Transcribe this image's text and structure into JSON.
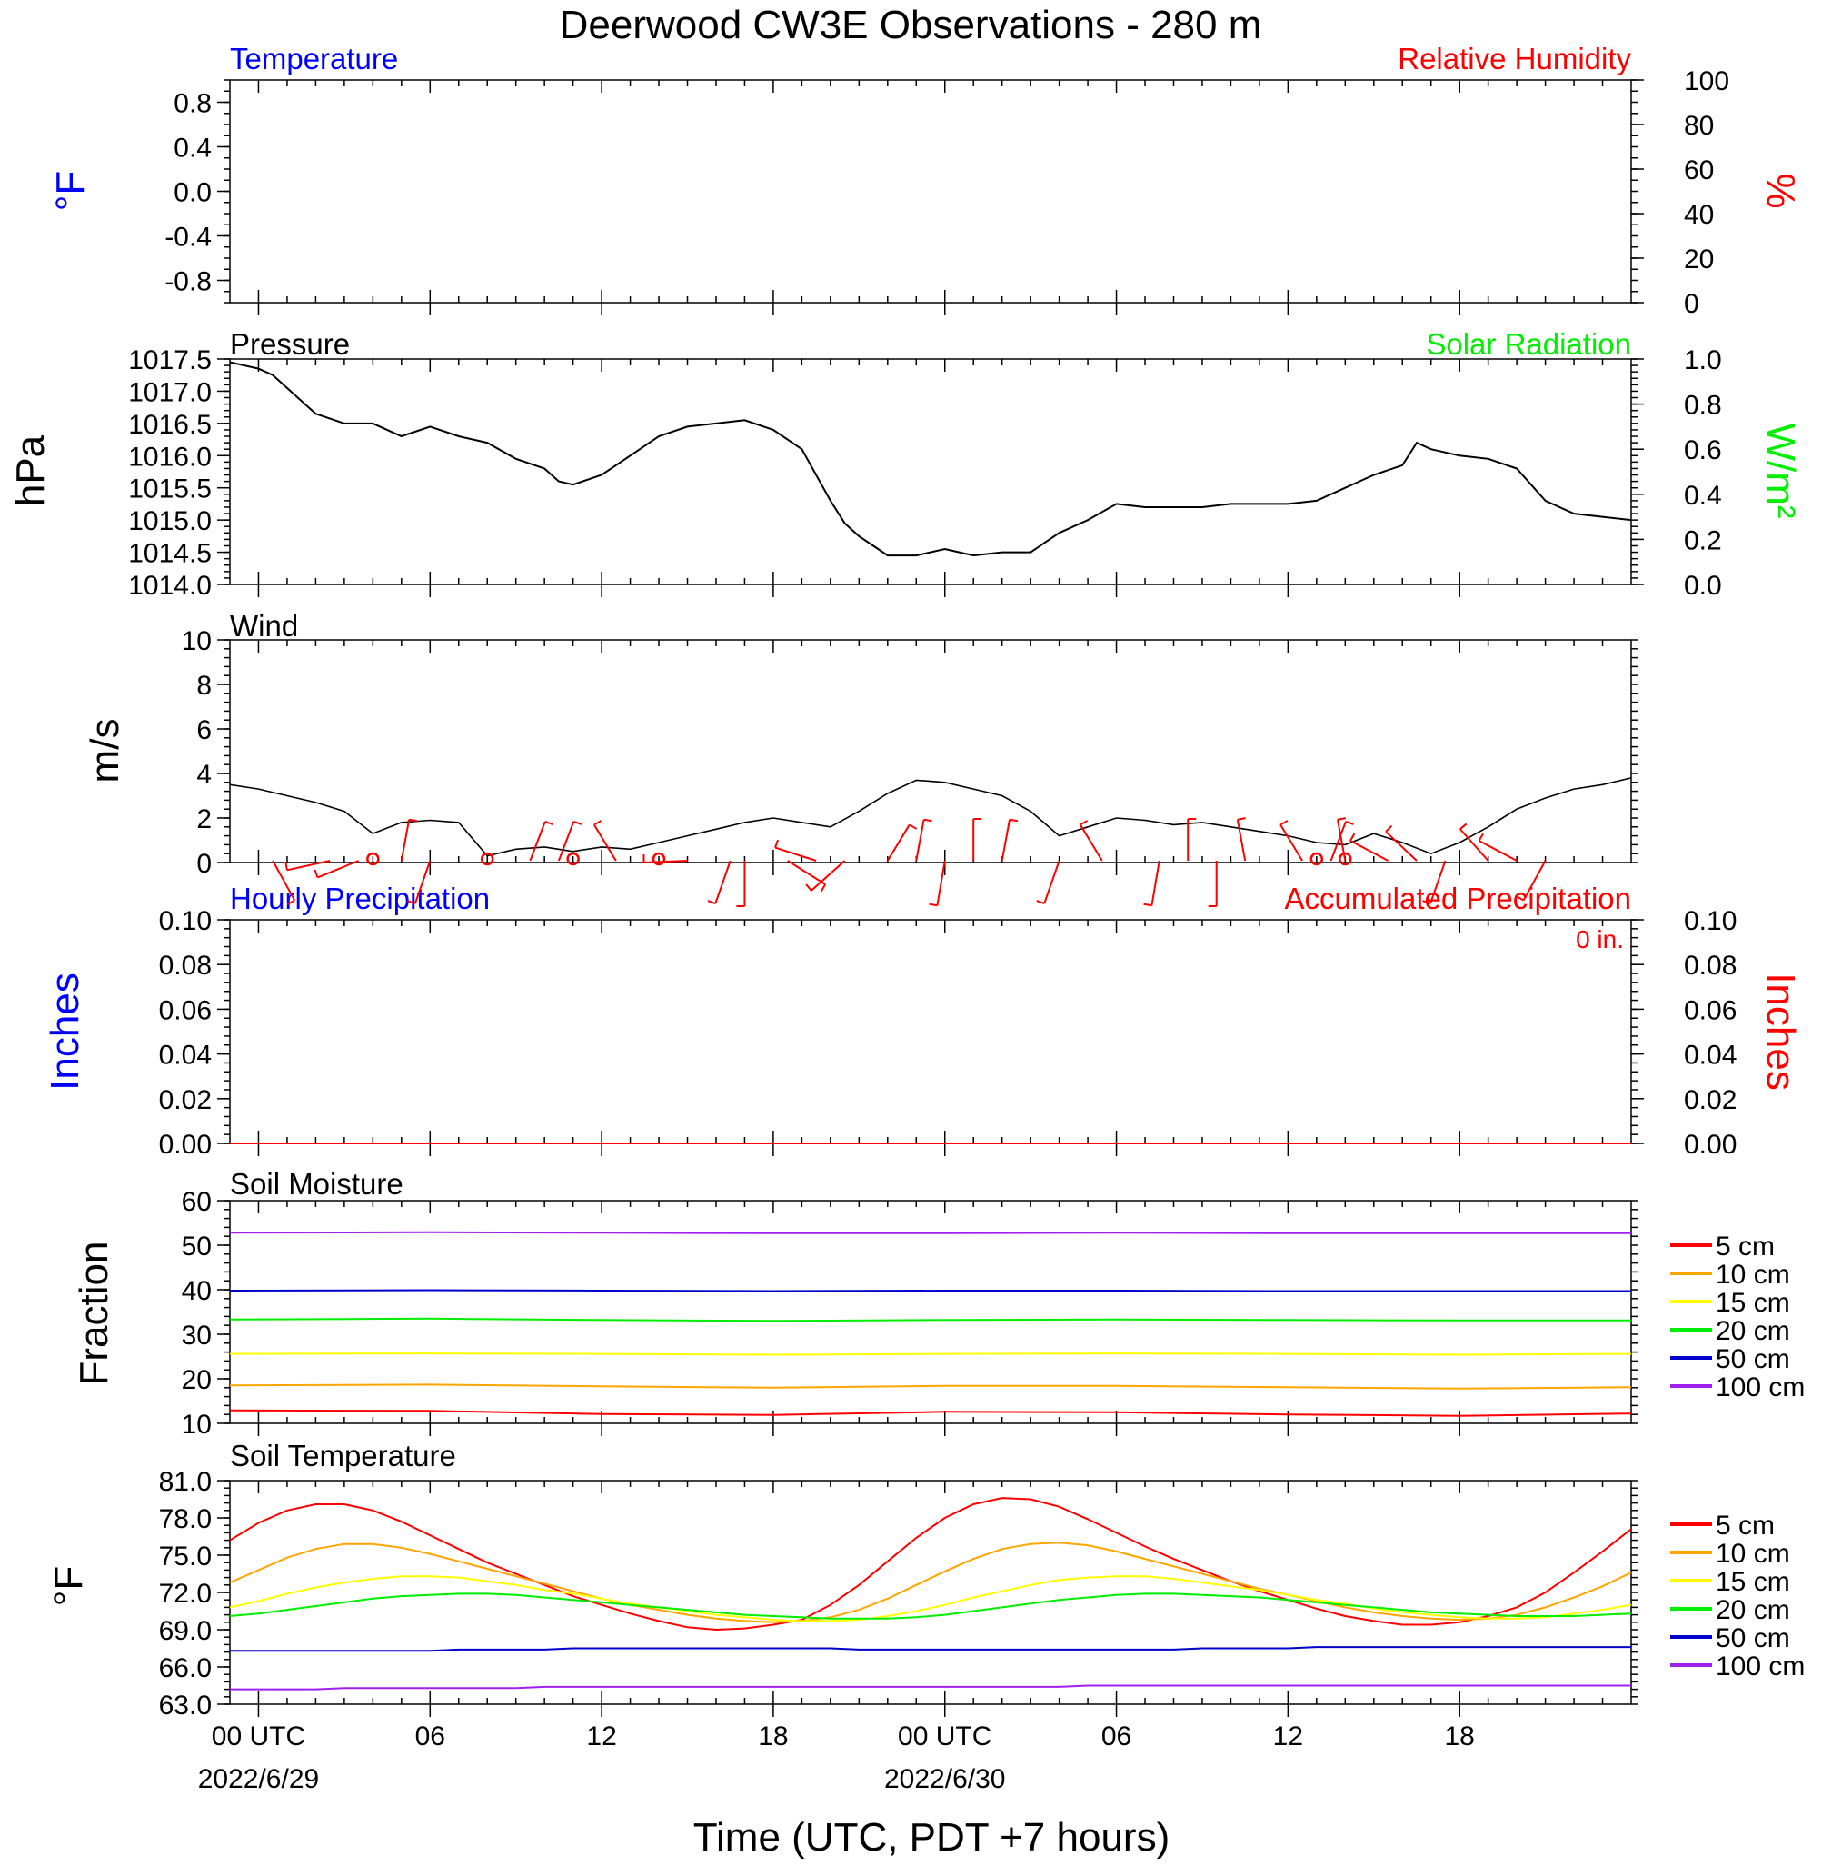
{
  "title": "Deerwood CW3E Observations - 280 m",
  "xlabel": "Time (UTC, PDT +7 hours)",
  "x_ticks": [
    {
      "hour": 0,
      "label": "00 UTC",
      "date": "2022/6/29"
    },
    {
      "hour": 6,
      "label": "06",
      "date": ""
    },
    {
      "hour": 12,
      "label": "12",
      "date": ""
    },
    {
      "hour": 18,
      "label": "18",
      "date": ""
    },
    {
      "hour": 24,
      "label": "00 UTC",
      "date": "2022/6/30"
    },
    {
      "hour": 30,
      "label": "06",
      "date": ""
    },
    {
      "hour": 36,
      "label": "12",
      "date": ""
    },
    {
      "hour": 42,
      "label": "18",
      "date": ""
    }
  ],
  "colors": {
    "blue": "#0000ff",
    "red": "#ff0000",
    "green": "#00ee00",
    "black": "#000000",
    "soil": [
      "#ff0000",
      "#ffa500",
      "#ffff00",
      "#00ee00",
      "#0000cd",
      "#a020f0"
    ]
  },
  "panels": {
    "temperature": {
      "title_left": "Temperature",
      "title_right": "Relative Humidity",
      "ylabel_left": "°F",
      "ylabel_right": "%",
      "yticks_left": [
        "0.8",
        "0.4",
        "0.0",
        "-0.4",
        "-0.8"
      ],
      "yticks_right": [
        "100",
        "80",
        "60",
        "40",
        "20",
        "0"
      ]
    },
    "pressure": {
      "title_left": "Pressure",
      "title_right": "Solar Radiation",
      "ylabel_left": "hPa",
      "ylabel_right": "W/m²",
      "yticks_left": [
        "1017.5",
        "1017.0",
        "1016.5",
        "1016.0",
        "1015.5",
        "1015.0",
        "1014.5",
        "1014.0"
      ],
      "yticks_right": [
        "1.0",
        "0.8",
        "0.6",
        "0.4",
        "0.2",
        "0.0"
      ]
    },
    "wind": {
      "title_left": "Wind",
      "ylabel_left": "m/s",
      "yticks_left": [
        "10",
        "8",
        "6",
        "4",
        "2",
        "0"
      ]
    },
    "precip": {
      "title_left": "Hourly Precipitation",
      "title_right": "Accumulated Precipitation",
      "total": "0 in.",
      "ylabel_left": "Inches",
      "ylabel_right": "Inches",
      "yticks_left": [
        "0.10",
        "0.08",
        "0.06",
        "0.04",
        "0.02",
        "0.00"
      ],
      "yticks_right": [
        "0.10",
        "0.08",
        "0.06",
        "0.04",
        "0.02",
        "0.00"
      ]
    },
    "soil_moisture": {
      "title_left": "Soil Moisture",
      "ylabel_left": "Fraction",
      "yticks_left": [
        "60",
        "50",
        "40",
        "30",
        "20",
        "10"
      ],
      "legend": [
        "5 cm",
        "10 cm",
        "15 cm",
        "20 cm",
        "50 cm",
        "100 cm"
      ]
    },
    "soil_temperature": {
      "title_left": "Soil Temperature",
      "ylabel_left": "°F",
      "yticks_left": [
        "81.0",
        "78.0",
        "75.0",
        "72.0",
        "69.0",
        "66.0",
        "63.0"
      ],
      "legend": [
        "5 cm",
        "10 cm",
        "15 cm",
        "20 cm",
        "50 cm",
        "100 cm"
      ]
    }
  },
  "chart_data": [
    {
      "type": "line",
      "name": "temperature-rh",
      "xlim": [
        -1,
        48
      ],
      "ylim": [
        -1,
        1
      ],
      "ylim_right": [
        0,
        100
      ],
      "series": []
    },
    {
      "type": "line",
      "name": "pressure",
      "xlim": [
        -1,
        48
      ],
      "ylim": [
        1014.0,
        1017.5
      ],
      "ylim_right": [
        0.0,
        1.0
      ],
      "series": [
        {
          "x": [
            -1,
            0,
            0.5,
            1,
            1.5,
            2,
            3,
            4,
            5,
            6,
            7,
            8,
            9,
            10,
            10.5,
            11,
            12,
            13,
            14,
            15,
            16,
            17,
            18,
            19,
            19.5,
            20,
            20.5,
            21,
            21.5,
            22,
            23,
            24,
            25,
            26,
            27,
            28,
            29,
            30,
            31,
            32,
            33,
            34,
            35,
            36,
            37,
            38,
            39,
            40,
            40.5,
            41,
            42,
            43,
            44,
            45,
            46,
            47,
            48
          ],
          "y": [
            1017.45,
            1017.35,
            1017.25,
            1017.05,
            1016.85,
            1016.65,
            1016.5,
            1016.5,
            1016.3,
            1016.45,
            1016.3,
            1016.2,
            1015.95,
            1015.8,
            1015.6,
            1015.55,
            1015.7,
            1016.0,
            1016.3,
            1016.45,
            1016.5,
            1016.55,
            1016.4,
            1016.1,
            1015.7,
            1015.3,
            1014.95,
            1014.75,
            1014.6,
            1014.45,
            1014.45,
            1014.55,
            1014.45,
            1014.5,
            1014.5,
            1014.8,
            1015.0,
            1015.25,
            1015.2,
            1015.2,
            1015.2,
            1015.25,
            1015.25,
            1015.25,
            1015.3,
            1015.5,
            1015.7,
            1015.85,
            1016.2,
            1016.1,
            1016.0,
            1015.95,
            1015.8,
            1015.3,
            1015.1,
            1015.05,
            1015.0
          ]
        }
      ]
    },
    {
      "type": "line",
      "name": "wind",
      "xlim": [
        -1,
        48
      ],
      "ylim": [
        0,
        10
      ],
      "series": [
        {
          "x": [
            -1,
            0,
            1,
            2,
            3,
            4,
            5,
            6,
            7,
            8,
            9,
            10,
            11,
            12,
            13,
            14,
            15,
            16,
            17,
            18,
            19,
            20,
            21,
            22,
            23,
            24,
            25,
            26,
            27,
            28,
            29,
            30,
            31,
            32,
            33,
            34,
            35,
            36,
            37,
            38,
            39,
            40,
            41,
            42,
            43,
            44,
            45,
            46,
            47,
            48
          ],
          "y": [
            3.5,
            3.3,
            3.0,
            2.7,
            2.3,
            1.3,
            1.8,
            1.9,
            1.8,
            0.3,
            0.6,
            0.7,
            0.5,
            0.7,
            0.6,
            0.9,
            1.2,
            1.5,
            1.8,
            2.0,
            1.8,
            1.6,
            2.3,
            3.1,
            3.7,
            3.6,
            3.3,
            3.0,
            2.3,
            1.2,
            1.6,
            2.0,
            1.9,
            1.7,
            1.8,
            1.6,
            1.4,
            1.2,
            0.9,
            0.8,
            1.3,
            0.9,
            0.4,
            0.9,
            1.6,
            2.4,
            2.9,
            3.3,
            3.5,
            3.8
          ]
        }
      ],
      "barbs": {
        "x": [
          0.5,
          2.5,
          3.5,
          5.0,
          6.0,
          9.5,
          10.5,
          12.5,
          15.0,
          16.5,
          17.0,
          18.5,
          19.5,
          20.5,
          22.0,
          23.0,
          24.0,
          25.0,
          26.0,
          28.0,
          29.5,
          31.5,
          32.5,
          33.5,
          34.5,
          36.5,
          37.5,
          38.0,
          39.5,
          40.5,
          41.5,
          43.0,
          44.0,
          45.0
        ],
        "dir": [
          150,
          260,
          250,
          10,
          200,
          20,
          20,
          330,
          270,
          200,
          180,
          120,
          290,
          230,
          30,
          10,
          190,
          0,
          10,
          200,
          330,
          190,
          0,
          180,
          350,
          330,
          20,
          350,
          300,
          315,
          200,
          320,
          300,
          210
        ]
      },
      "calm": {
        "x": [
          4,
          8,
          11,
          14,
          37,
          38
        ]
      }
    },
    {
      "type": "line",
      "name": "precipitation",
      "xlim": [
        -1,
        48
      ],
      "ylim": [
        0,
        0.1
      ],
      "series": [
        {
          "name": "Hourly Precipitation",
          "x": [
            -1,
            48
          ],
          "y": [
            0,
            0
          ]
        },
        {
          "name": "Accumulated Precipitation",
          "x": [
            -1,
            48
          ],
          "y": [
            0,
            0
          ]
        }
      ]
    },
    {
      "type": "line",
      "name": "soil_moisture",
      "xlim": [
        -1,
        48
      ],
      "ylim": [
        10,
        60
      ],
      "x": [
        -1,
        6,
        12,
        18,
        24,
        30,
        36,
        42,
        48
      ],
      "series": [
        {
          "name": "5 cm",
          "values": [
            12.9,
            12.8,
            12.1,
            11.9,
            12.6,
            12.5,
            12.0,
            11.7,
            12.2
          ]
        },
        {
          "name": "10 cm",
          "values": [
            18.5,
            18.7,
            18.3,
            18.0,
            18.4,
            18.4,
            18.1,
            17.8,
            18.1
          ]
        },
        {
          "name": "15 cm",
          "values": [
            25.6,
            25.7,
            25.6,
            25.4,
            25.6,
            25.7,
            25.6,
            25.4,
            25.6
          ]
        },
        {
          "name": "20 cm",
          "values": [
            33.3,
            33.5,
            33.2,
            33.0,
            33.2,
            33.3,
            33.2,
            33.1,
            33.1
          ]
        },
        {
          "name": "50 cm",
          "values": [
            39.8,
            39.9,
            39.8,
            39.7,
            39.8,
            39.8,
            39.7,
            39.7,
            39.7
          ]
        },
        {
          "name": "100 cm",
          "values": [
            52.8,
            52.9,
            52.8,
            52.7,
            52.7,
            52.8,
            52.7,
            52.7,
            52.7
          ]
        }
      ]
    },
    {
      "type": "line",
      "name": "soil_temperature",
      "xlim": [
        -1,
        48
      ],
      "ylim": [
        63,
        81
      ],
      "x": [
        -1,
        0,
        1,
        2,
        3,
        4,
        5,
        6,
        7,
        8,
        9,
        10,
        11,
        12,
        13,
        14,
        15,
        16,
        17,
        18,
        19,
        20,
        21,
        22,
        23,
        24,
        25,
        26,
        27,
        28,
        29,
        30,
        31,
        32,
        33,
        34,
        35,
        36,
        37,
        38,
        39,
        40,
        41,
        42,
        43,
        44,
        45,
        46,
        47,
        48
      ],
      "series": [
        {
          "name": "5 cm",
          "values": [
            76.2,
            77.6,
            78.6,
            79.1,
            79.1,
            78.6,
            77.7,
            76.6,
            75.5,
            74.4,
            73.5,
            72.6,
            71.7,
            71.0,
            70.3,
            69.7,
            69.2,
            69.0,
            69.1,
            69.4,
            69.8,
            71.0,
            72.6,
            74.5,
            76.4,
            78.0,
            79.1,
            79.6,
            79.5,
            78.9,
            77.9,
            76.8,
            75.7,
            74.7,
            73.8,
            72.9,
            72.1,
            71.4,
            70.7,
            70.1,
            69.7,
            69.4,
            69.4,
            69.6,
            70.1,
            70.8,
            72.0,
            73.6,
            75.3,
            77.1
          ]
        },
        {
          "name": "10 cm",
          "values": [
            72.8,
            73.8,
            74.8,
            75.5,
            75.9,
            75.9,
            75.6,
            75.1,
            74.5,
            73.9,
            73.3,
            72.7,
            72.1,
            71.5,
            71.0,
            70.6,
            70.2,
            69.9,
            69.7,
            69.6,
            69.7,
            70.0,
            70.6,
            71.5,
            72.6,
            73.7,
            74.7,
            75.5,
            75.9,
            76.0,
            75.8,
            75.3,
            74.7,
            74.1,
            73.5,
            72.9,
            72.3,
            71.8,
            71.3,
            70.8,
            70.4,
            70.1,
            69.9,
            69.8,
            69.9,
            70.2,
            70.8,
            71.6,
            72.5,
            73.6
          ]
        },
        {
          "name": "15 cm",
          "values": [
            70.8,
            71.3,
            71.9,
            72.4,
            72.8,
            73.1,
            73.3,
            73.3,
            73.2,
            72.9,
            72.6,
            72.2,
            71.9,
            71.5,
            71.1,
            70.8,
            70.5,
            70.2,
            70.0,
            69.8,
            69.7,
            69.7,
            69.8,
            70.1,
            70.5,
            71.0,
            71.6,
            72.1,
            72.6,
            73.0,
            73.2,
            73.3,
            73.3,
            73.1,
            72.8,
            72.5,
            72.2,
            71.8,
            71.4,
            71.1,
            70.7,
            70.4,
            70.2,
            70.0,
            69.9,
            69.9,
            70.0,
            70.3,
            70.6,
            71.0
          ]
        },
        {
          "name": "20 cm",
          "values": [
            70.1,
            70.3,
            70.6,
            70.9,
            71.2,
            71.5,
            71.7,
            71.8,
            71.9,
            71.9,
            71.8,
            71.6,
            71.4,
            71.2,
            71.0,
            70.8,
            70.6,
            70.4,
            70.2,
            70.1,
            70.0,
            69.9,
            69.9,
            69.9,
            70.0,
            70.2,
            70.5,
            70.8,
            71.1,
            71.4,
            71.6,
            71.8,
            71.9,
            71.9,
            71.8,
            71.7,
            71.6,
            71.4,
            71.2,
            71.0,
            70.8,
            70.6,
            70.4,
            70.3,
            70.2,
            70.1,
            70.1,
            70.1,
            70.2,
            70.3
          ]
        },
        {
          "name": "50 cm",
          "values": [
            67.3,
            67.3,
            67.3,
            67.3,
            67.3,
            67.3,
            67.3,
            67.3,
            67.4,
            67.4,
            67.4,
            67.4,
            67.5,
            67.5,
            67.5,
            67.5,
            67.5,
            67.5,
            67.5,
            67.5,
            67.5,
            67.5,
            67.4,
            67.4,
            67.4,
            67.4,
            67.4,
            67.4,
            67.4,
            67.4,
            67.4,
            67.4,
            67.4,
            67.4,
            67.5,
            67.5,
            67.5,
            67.5,
            67.6,
            67.6,
            67.6,
            67.6,
            67.6,
            67.6,
            67.6,
            67.6,
            67.6,
            67.6,
            67.6,
            67.6
          ]
        },
        {
          "name": "100 cm",
          "values": [
            64.2,
            64.2,
            64.2,
            64.2,
            64.3,
            64.3,
            64.3,
            64.3,
            64.3,
            64.3,
            64.3,
            64.4,
            64.4,
            64.4,
            64.4,
            64.4,
            64.4,
            64.4,
            64.4,
            64.4,
            64.4,
            64.4,
            64.4,
            64.4,
            64.4,
            64.4,
            64.4,
            64.4,
            64.4,
            64.4,
            64.5,
            64.5,
            64.5,
            64.5,
            64.5,
            64.5,
            64.5,
            64.5,
            64.5,
            64.5,
            64.5,
            64.5,
            64.5,
            64.5,
            64.5,
            64.5,
            64.5,
            64.5,
            64.5,
            64.5
          ]
        }
      ]
    }
  ]
}
